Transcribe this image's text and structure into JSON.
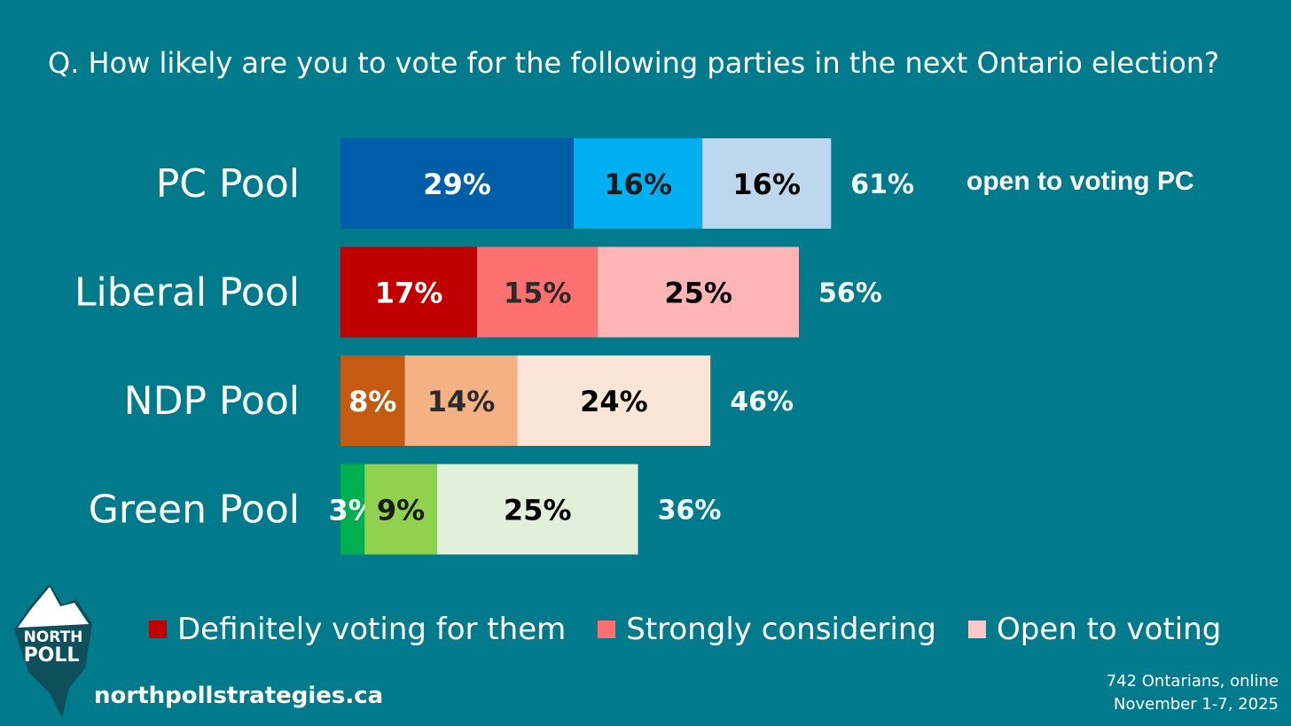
{
  "title": "Q. How likely are you to vote for the following parties in the next Ontario election?",
  "chart_data": {
    "type": "bar",
    "orientation": "horizontal",
    "stacked": true,
    "title": "Q. How likely are you to vote for the following parties in the next Ontario election?",
    "categories": [
      "PC Pool",
      "Liberal Pool",
      "NDP Pool",
      "Green Pool"
    ],
    "series": [
      {
        "name": "Definitely voting for them",
        "values": [
          29,
          17,
          8,
          3
        ]
      },
      {
        "name": "Strongly considering",
        "values": [
          16,
          15,
          14,
          9
        ]
      },
      {
        "name": "Open to voting",
        "values": [
          16,
          25,
          24,
          25
        ]
      }
    ],
    "value_labels": [
      [
        "29%",
        "16%",
        "16%"
      ],
      [
        "17%",
        "15%",
        "25%"
      ],
      [
        "8%",
        "14%",
        "24%"
      ],
      [
        "3%",
        "9%",
        "25%"
      ]
    ],
    "totals": [
      61,
      56,
      46,
      36
    ],
    "total_labels": [
      "61%",
      "56%",
      "46%",
      "36%"
    ],
    "annotation": "open to voting PC",
    "colors": [
      [
        "#005EA8",
        "#00B0F0",
        "#BDD7EE"
      ],
      [
        "#C00000",
        "#FF7171",
        "#FFB5B5"
      ],
      [
        "#C55A11",
        "#F4B183",
        "#FBE5D6"
      ],
      [
        "#00B050",
        "#92D050",
        "#E2EFDA"
      ]
    ],
    "label_colors": [
      [
        "#ffffff",
        "#1a1a1a",
        "#000000"
      ],
      [
        "#ffffff",
        "#2b2b2b",
        "#000000"
      ],
      [
        "#ffffff",
        "#2b2b2b",
        "#000000"
      ],
      [
        "#ffffff",
        "#1a1a1a",
        "#000000"
      ]
    ],
    "xlim": [
      0,
      100
    ]
  },
  "legend": [
    {
      "label": "Definitely voting for them",
      "color": "#C00000"
    },
    {
      "label": "Strongly considering",
      "color": "#FF7171"
    },
    {
      "label": "Open to voting",
      "color": "#FFC7C7"
    }
  ],
  "logo": {
    "line1": "NORTH",
    "line2": "POLL"
  },
  "website": "northpollstrategies.ca",
  "source": {
    "line1": "742 Ontarians, online",
    "line2": "November 1-7, 2025"
  }
}
